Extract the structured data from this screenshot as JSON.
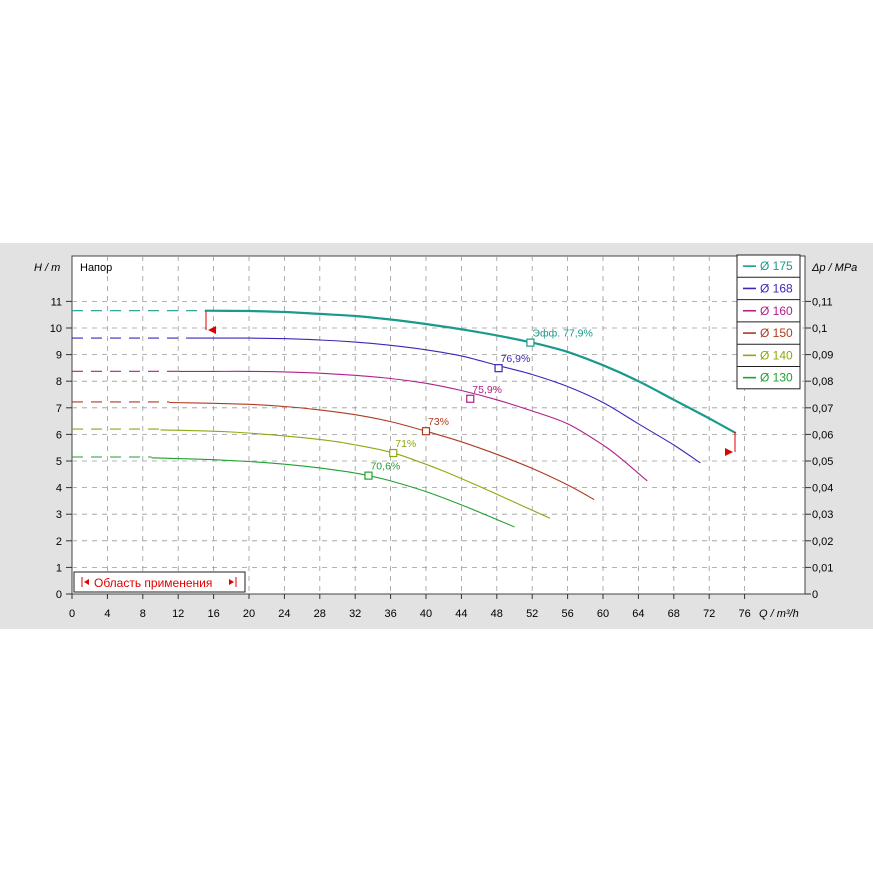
{
  "chart_data": {
    "type": "line",
    "y_left_title": "H / m",
    "y_left_caption": "Напор",
    "y_right_title": "Δp / MPa",
    "x_title": "Q / m³/h",
    "x_ticks": [
      0,
      4,
      8,
      12,
      16,
      20,
      24,
      28,
      32,
      36,
      40,
      44,
      48,
      52,
      56,
      60,
      64,
      68,
      72,
      76
    ],
    "y_left_ticks": [
      0,
      1,
      2,
      3,
      4,
      5,
      6,
      7,
      8,
      9,
      10,
      11
    ],
    "y_right_ticks": [
      "0",
      "0,01",
      "0,02",
      "0,03",
      "0,04",
      "0,05",
      "0,06",
      "0,07",
      "0,08",
      "0,09",
      "0,1",
      "0,11"
    ],
    "xlim": [
      0,
      82
    ],
    "ylim": [
      0,
      12
    ],
    "grid": true,
    "legend_position": "top-right",
    "application_range_label": "Область применения",
    "series": [
      {
        "name": "Ø 175",
        "color": "#1a9a8a",
        "bold": true,
        "dashed": [
          [
            0,
            10.65
          ],
          [
            15,
            10.65
          ]
        ],
        "x": [
          15,
          20,
          24,
          28,
          32,
          36,
          40,
          44,
          48,
          52,
          56,
          60,
          64,
          68,
          72,
          75
        ],
        "y": [
          10.65,
          10.64,
          10.6,
          10.53,
          10.45,
          10.32,
          10.15,
          9.95,
          9.72,
          9.45,
          9.1,
          8.6,
          8.0,
          7.3,
          6.6,
          6.05
        ],
        "bep": {
          "x": 51.8,
          "y": 9.45,
          "label": "Эфф.  77,9%"
        }
      },
      {
        "name": "Ø 168",
        "color": "#3a28b8",
        "dashed": [
          [
            0,
            9.62
          ],
          [
            13,
            9.62
          ]
        ],
        "x": [
          13,
          16,
          20,
          24,
          28,
          32,
          36,
          40,
          44,
          48,
          52,
          56,
          60,
          64,
          68,
          71
        ],
        "y": [
          9.62,
          9.62,
          9.62,
          9.6,
          9.55,
          9.47,
          9.35,
          9.18,
          8.95,
          8.6,
          8.25,
          7.8,
          7.2,
          6.4,
          5.6,
          4.93
        ],
        "bep": {
          "x": 48.2,
          "y": 8.49,
          "label": "76,9%"
        }
      },
      {
        "name": "Ø 160",
        "color": "#b0208a",
        "dashed": [
          [
            0,
            8.37
          ],
          [
            12,
            8.37
          ]
        ],
        "x": [
          12,
          16,
          20,
          24,
          28,
          32,
          36,
          40,
          44,
          48,
          52,
          56,
          60,
          62,
          65
        ],
        "y": [
          8.37,
          8.37,
          8.37,
          8.35,
          8.3,
          8.22,
          8.1,
          7.92,
          7.65,
          7.3,
          6.88,
          6.4,
          5.6,
          5.1,
          4.25
        ],
        "bep": {
          "x": 45.0,
          "y": 7.34,
          "label": "75,9%"
        }
      },
      {
        "name": "Ø 150",
        "color": "#b03a20",
        "dashed": [
          [
            0,
            7.22
          ],
          [
            11,
            7.22
          ]
        ],
        "x": [
          11,
          16,
          20,
          24,
          28,
          32,
          36,
          40,
          44,
          48,
          52,
          56,
          59
        ],
        "y": [
          7.2,
          7.17,
          7.13,
          7.05,
          6.92,
          6.74,
          6.48,
          6.12,
          5.72,
          5.25,
          4.72,
          4.1,
          3.55
        ],
        "bep": {
          "x": 40.0,
          "y": 6.12,
          "label": "73%"
        }
      },
      {
        "name": "Ø 140",
        "color": "#8aaa10",
        "dashed": [
          [
            0,
            6.2
          ],
          [
            10,
            6.2
          ]
        ],
        "x": [
          10,
          14,
          18,
          22,
          26,
          30,
          34,
          36,
          38,
          42,
          46,
          50,
          54
        ],
        "y": [
          6.17,
          6.14,
          6.09,
          6.0,
          5.88,
          5.72,
          5.48,
          5.33,
          5.12,
          4.62,
          4.05,
          3.45,
          2.85
        ],
        "bep": {
          "x": 36.3,
          "y": 5.3,
          "label": "71%"
        }
      },
      {
        "name": "Ø 130",
        "color": "#20a030",
        "dashed": [
          [
            0,
            5.15
          ],
          [
            9,
            5.15
          ]
        ],
        "x": [
          9,
          12,
          16,
          20,
          24,
          28,
          31,
          33.5,
          36,
          40,
          44,
          48,
          50
        ],
        "y": [
          5.12,
          5.09,
          5.05,
          4.98,
          4.88,
          4.74,
          4.6,
          4.45,
          4.25,
          3.85,
          3.35,
          2.8,
          2.52
        ],
        "bep": {
          "x": 33.5,
          "y": 4.45,
          "label": "70,6%"
        }
      }
    ]
  }
}
